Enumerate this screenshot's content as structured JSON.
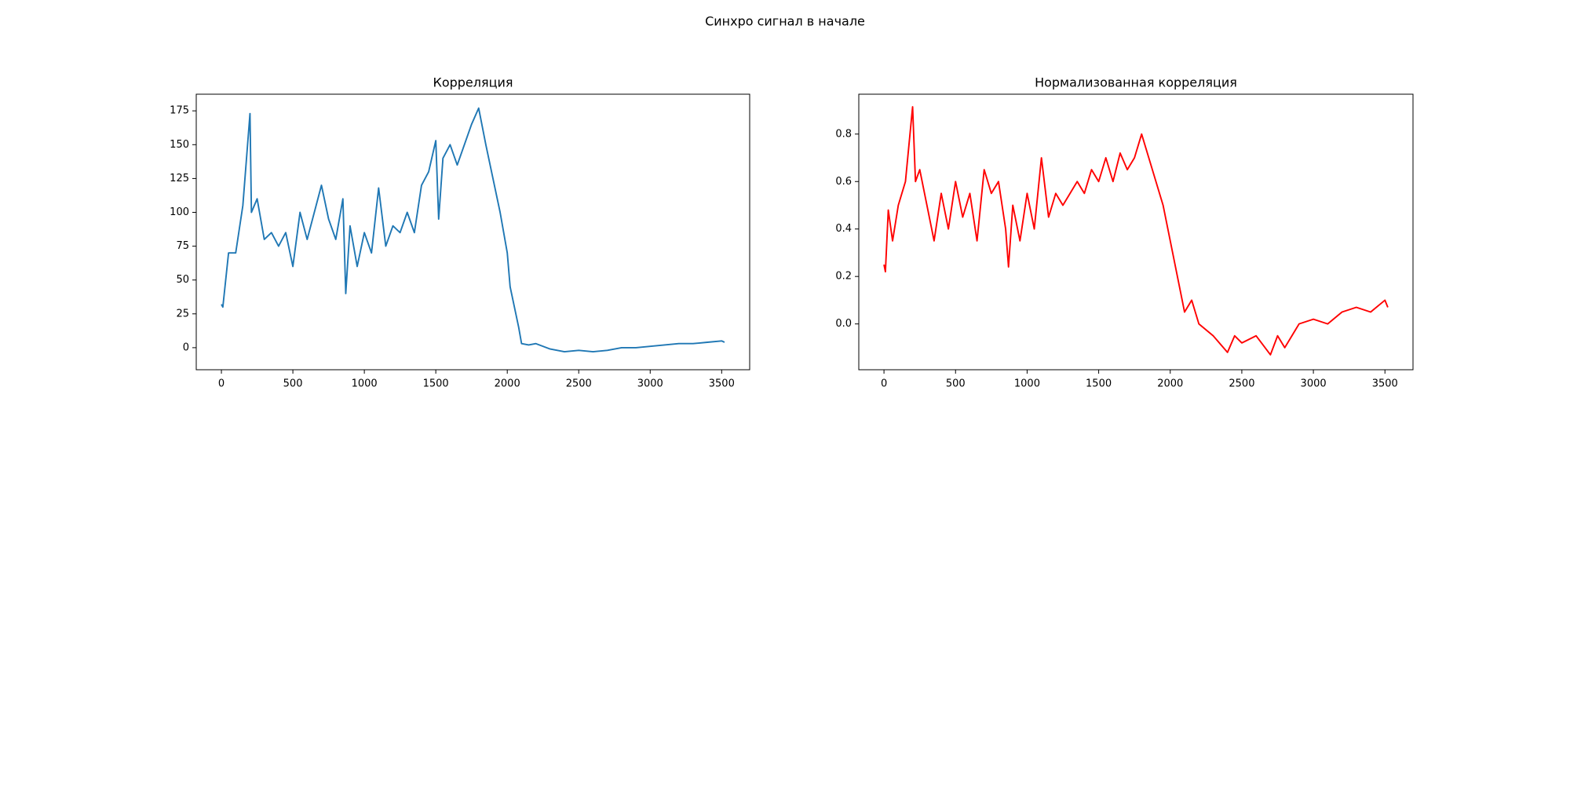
{
  "title": "Синхро сигнал в начале",
  "chart_data": [
    {
      "type": "line",
      "title": "Корреляция",
      "color": "#1f77b4",
      "x": [
        0,
        10,
        50,
        100,
        150,
        200,
        210,
        250,
        300,
        350,
        400,
        450,
        500,
        550,
        600,
        650,
        700,
        750,
        800,
        850,
        870,
        900,
        950,
        1000,
        1050,
        1100,
        1150,
        1200,
        1250,
        1300,
        1350,
        1400,
        1450,
        1500,
        1520,
        1550,
        1600,
        1650,
        1700,
        1750,
        1800,
        1850,
        1900,
        1950,
        2000,
        2020,
        2050,
        2080,
        2100,
        2150,
        2200,
        2300,
        2400,
        2500,
        2600,
        2700,
        2800,
        2900,
        3000,
        3100,
        3200,
        3300,
        3400,
        3500,
        3520
      ],
      "values": [
        32,
        30,
        70,
        70,
        105,
        173,
        100,
        110,
        80,
        85,
        75,
        85,
        60,
        100,
        80,
        100,
        120,
        95,
        80,
        110,
        40,
        90,
        60,
        85,
        70,
        118,
        75,
        90,
        85,
        100,
        85,
        120,
        130,
        153,
        95,
        140,
        150,
        135,
        150,
        165,
        177,
        150,
        125,
        100,
        70,
        45,
        30,
        15,
        3,
        2,
        3,
        -1,
        -3,
        -2,
        -3,
        -2,
        0,
        0,
        1,
        2,
        3,
        3,
        4,
        5,
        4
      ],
      "xlim": [
        -176,
        3696
      ],
      "ylim": [
        -16.3,
        187.3
      ],
      "xticks": [
        0,
        500,
        1000,
        1500,
        2000,
        2500,
        3000,
        3500
      ],
      "yticks": [
        0,
        25,
        50,
        75,
        100,
        125,
        150,
        175
      ]
    },
    {
      "type": "line",
      "title": "Нормализованная корреляция",
      "color": "#ff0000",
      "x": [
        0,
        10,
        30,
        60,
        100,
        150,
        200,
        220,
        250,
        300,
        350,
        400,
        450,
        500,
        550,
        600,
        650,
        700,
        750,
        800,
        850,
        870,
        900,
        950,
        1000,
        1050,
        1100,
        1150,
        1200,
        1250,
        1300,
        1350,
        1400,
        1450,
        1500,
        1550,
        1600,
        1650,
        1700,
        1750,
        1800,
        1850,
        1900,
        1950,
        2000,
        2050,
        2100,
        2150,
        2200,
        2300,
        2400,
        2450,
        2500,
        2600,
        2700,
        2750,
        2800,
        2900,
        3000,
        3100,
        3200,
        3300,
        3400,
        3500,
        3520
      ],
      "values": [
        0.25,
        0.22,
        0.48,
        0.35,
        0.5,
        0.6,
        0.915,
        0.6,
        0.65,
        0.5,
        0.35,
        0.55,
        0.4,
        0.6,
        0.45,
        0.55,
        0.35,
        0.65,
        0.55,
        0.6,
        0.4,
        0.24,
        0.5,
        0.35,
        0.55,
        0.4,
        0.7,
        0.45,
        0.55,
        0.5,
        0.55,
        0.6,
        0.55,
        0.65,
        0.6,
        0.7,
        0.6,
        0.72,
        0.65,
        0.7,
        0.8,
        0.7,
        0.6,
        0.5,
        0.35,
        0.2,
        0.05,
        0.1,
        0.0,
        -0.05,
        -0.12,
        -0.05,
        -0.08,
        -0.05,
        -0.13,
        -0.05,
        -0.1,
        0.0,
        0.02,
        0.0,
        0.05,
        0.07,
        0.05,
        0.1,
        0.07
      ],
      "xlim": [
        -176,
        3696
      ],
      "ylim": [
        -0.193,
        0.968
      ],
      "xticks": [
        0,
        500,
        1000,
        1500,
        2000,
        2500,
        3000,
        3500
      ],
      "yticks": [
        {
          "value": 0,
          "label": "0.0"
        },
        0.2,
        0.4,
        0.6,
        0.8
      ]
    }
  ]
}
